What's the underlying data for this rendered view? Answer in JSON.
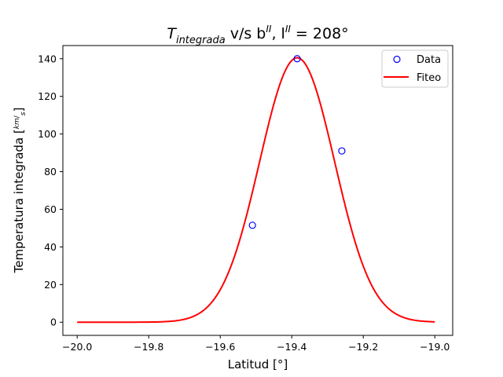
{
  "chart_data": {
    "type": "scatter",
    "title": {
      "italic": "T",
      "subscript": "integrada",
      "mid": " v/s b",
      "sup1": "II",
      "mid2": ", l",
      "sup2": "II",
      "end": " = 208°"
    },
    "xlabel": "Latitud [°]",
    "ylabel": {
      "text": "Temperatura integrada [",
      "frac_num": "km",
      "frac_den": "s",
      "close": "]"
    },
    "xlim": [
      -20.04,
      -18.95
    ],
    "ylim": [
      -7,
      147
    ],
    "xticks": [
      {
        "value": -20.0,
        "label": "−20.0"
      },
      {
        "value": -19.8,
        "label": "−19.8"
      },
      {
        "value": -19.6,
        "label": "−19.6"
      },
      {
        "value": -19.4,
        "label": "−19.4"
      },
      {
        "value": -19.2,
        "label": "−19.2"
      },
      {
        "value": -19.0,
        "label": "−19.0"
      }
    ],
    "yticks": [
      {
        "value": 0,
        "label": "0"
      },
      {
        "value": 20,
        "label": "20"
      },
      {
        "value": 40,
        "label": "40"
      },
      {
        "value": 60,
        "label": "60"
      },
      {
        "value": 80,
        "label": "80"
      },
      {
        "value": 100,
        "label": "100"
      },
      {
        "value": 120,
        "label": "120"
      },
      {
        "value": 140,
        "label": "140"
      }
    ],
    "grid": false,
    "legend_position": "upper right",
    "series": [
      {
        "name": "Data",
        "kind": "markers",
        "color": "#0000ff",
        "points": [
          {
            "x": -19.51,
            "y": 51.5
          },
          {
            "x": -19.385,
            "y": 140.0
          },
          {
            "x": -19.26,
            "y": 91.0
          }
        ]
      },
      {
        "name": "Fiteo",
        "kind": "line",
        "color": "#ff0000",
        "gaussian": {
          "amplitude": 140.5,
          "center": -19.385,
          "sigma": 0.105
        },
        "x_range": [
          -20.0,
          -19.0
        ]
      }
    ]
  }
}
